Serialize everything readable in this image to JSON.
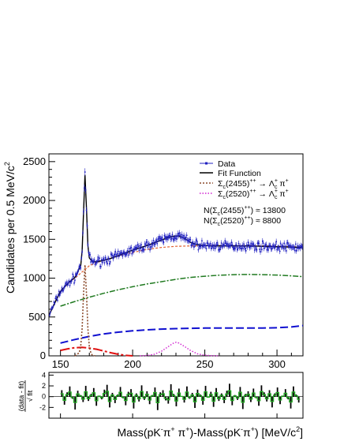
{
  "chart_data": [
    {
      "type": "line",
      "xlim": [
        142,
        318
      ],
      "ylim": [
        0,
        2600
      ],
      "xticks": [
        150,
        200,
        250,
        300
      ],
      "yticks": [
        0,
        500,
        1000,
        1500,
        2000,
        2500
      ],
      "xlabel_parts": {
        "a": "Mass(pK",
        "a_sup": "-",
        "b": "π",
        "b_sup": "+",
        "c": " π",
        "c_sup": "+",
        "d": ")-Mass(pK",
        "d_sup": "-",
        "e": "π",
        "e_sup": "+",
        "f": ") [MeV/c",
        "f_sup": "2",
        "g": "]"
      },
      "ylabel_parts": {
        "a": "Candidates per 0.5 MeV/c",
        "a_sup": "2"
      },
      "grid": false,
      "legend_position": "top-right",
      "legend": [
        {
          "key": "data",
          "label": "Data",
          "style": "points",
          "color": "#2020c0"
        },
        {
          "key": "fit",
          "label": "Fit Function",
          "style": "solid",
          "color": "#000000"
        },
        {
          "key": "sc2455",
          "label_parts": {
            "a": "Σ",
            "a_sub": "c",
            "b": "(2455)",
            "b_sup": "++",
            "c": " → Λ",
            "c_sup": "+",
            "c_sub": "c",
            "d": " π",
            "d_sup": "+"
          },
          "style": "dotted",
          "color": "#8b4a2b"
        },
        {
          "key": "sc2520",
          "label_parts": {
            "a": "Σ",
            "a_sub": "c",
            "b": "(2520)",
            "b_sup": "++",
            "c": " → Λ",
            "c_sup": "+",
            "c_sub": "c",
            "d": " π",
            "d_sup": "+"
          },
          "style": "dotted",
          "color": "#d020d0"
        }
      ],
      "annotations": [
        {
          "parts": {
            "a": "N(Σ",
            "a_sub": "c",
            "b": "(2455)",
            "b_sup": "++",
            "c": ") ≈ 13800"
          }
        },
        {
          "parts": {
            "a": "N(Σ",
            "a_sub": "c",
            "b": "(2520)",
            "b_sup": "++",
            "c": ") ≈ 8800"
          }
        }
      ],
      "series": [
        {
          "key": "fit",
          "color": "#000000",
          "x": [
            142,
            145,
            150,
            155,
            160,
            164,
            165,
            166,
            167,
            168,
            169,
            170,
            172,
            175,
            180,
            185,
            190,
            195,
            200,
            205,
            210,
            215,
            220,
            225,
            228,
            231,
            234,
            237,
            240,
            245,
            250,
            255,
            260,
            270,
            280,
            290,
            300,
            310,
            318
          ],
          "y": [
            520,
            640,
            830,
            930,
            1010,
            1160,
            1350,
            1850,
            2330,
            1900,
            1420,
            1260,
            1215,
            1210,
            1230,
            1255,
            1290,
            1325,
            1360,
            1390,
            1420,
            1455,
            1490,
            1525,
            1540,
            1545,
            1530,
            1500,
            1460,
            1430,
            1420,
            1415,
            1415,
            1415,
            1415,
            1410,
            1405,
            1400,
            1395
          ]
        },
        {
          "key": "background_total",
          "color": "#e06030",
          "x": [
            142,
            145,
            150,
            155,
            160,
            165,
            170,
            175,
            180,
            190,
            200,
            210,
            220,
            230,
            240,
            250,
            260,
            270,
            280,
            290,
            300,
            310,
            318
          ],
          "y": [
            520,
            640,
            830,
            930,
            1000,
            1080,
            1160,
            1200,
            1230,
            1285,
            1330,
            1370,
            1395,
            1410,
            1415,
            1418,
            1420,
            1420,
            1418,
            1415,
            1410,
            1405,
            1400
          ]
        },
        {
          "key": "sc2455",
          "color": "#8b4a2b",
          "x": [
            160,
            163,
            164,
            165,
            166,
            167,
            168,
            169,
            170,
            171,
            172,
            174
          ],
          "y": [
            0,
            40,
            120,
            350,
            800,
            1170,
            800,
            350,
            120,
            40,
            10,
            0
          ]
        },
        {
          "key": "sc2520",
          "color": "#d020d0",
          "x": [
            205,
            210,
            215,
            220,
            224,
            228,
            230,
            232,
            236,
            240,
            245,
            250,
            255,
            260
          ],
          "y": [
            0,
            5,
            20,
            60,
            110,
            160,
            175,
            165,
            120,
            70,
            25,
            8,
            2,
            0
          ]
        },
        {
          "key": "bkg_green",
          "color": "#207a20",
          "x": [
            150,
            160,
            170,
            180,
            190,
            200,
            210,
            220,
            230,
            240,
            250,
            260,
            270,
            280,
            290,
            300,
            310,
            318
          ],
          "y": [
            640,
            700,
            755,
            805,
            850,
            890,
            925,
            955,
            985,
            1010,
            1025,
            1038,
            1045,
            1048,
            1045,
            1040,
            1030,
            1020
          ]
        },
        {
          "key": "bkg_blue",
          "color": "#1010d0",
          "x": [
            150,
            160,
            170,
            180,
            190,
            200,
            210,
            220,
            230,
            240,
            250,
            260,
            270,
            280,
            290,
            300,
            310,
            318
          ],
          "y": [
            165,
            210,
            250,
            282,
            305,
            322,
            335,
            344,
            350,
            354,
            357,
            358,
            358,
            358,
            359,
            362,
            372,
            390
          ]
        },
        {
          "key": "bkg_red",
          "color": "#e01010",
          "x": [
            150,
            155,
            160,
            165,
            170,
            175,
            180,
            185,
            190,
            195,
            200
          ],
          "y": [
            70,
            90,
            105,
            110,
            100,
            85,
            62,
            40,
            20,
            6,
            0
          ]
        }
      ],
      "data_points": {
        "seed": 7,
        "noise": 35,
        "color": "#2020c0"
      }
    },
    {
      "type": "bar",
      "ylabel_parts": {
        "a": "(data - fit)",
        "b": "√ fit"
      },
      "ylim": [
        -4,
        4.5
      ],
      "yticks": [
        -2,
        0,
        2,
        4
      ],
      "xlim": [
        142,
        318
      ],
      "bar_color": "#000000",
      "hist_color": "#22aa22",
      "pulls": [
        1.2,
        -1.5,
        0.8,
        1.9,
        -0.4,
        -2.4,
        1.1,
        0.3,
        -1.0,
        2.0,
        -0.8,
        0.5,
        1.6,
        -1.7,
        0.2,
        -0.5,
        1.3,
        2.2,
        -2.0,
        0.7,
        -1.2,
        0.4,
        1.8,
        -0.3,
        -1.6,
        0.9,
        1.4,
        -2.2,
        0.6,
        -0.9,
        2.1,
        -0.6,
        1.0,
        -1.4,
        0.3,
        1.7,
        -2.5,
        0.8,
        1.2,
        -0.7,
        -1.3,
        2.3,
        0.5,
        -1.8,
        1.5,
        0.1,
        -1.1,
        1.9,
        -0.4,
        0.7,
        -2.1,
        1.3,
        0.4,
        -1.5,
        2.0,
        -0.2,
        0.9,
        -1.9,
        1.6,
        -0.8,
        0.6,
        -1.2,
        1.1,
        2.4,
        -1.6,
        0.3,
        -0.6,
        1.8,
        -2.3,
        0.5,
        1.0,
        -1.0,
        1.5,
        -0.3,
        -1.7,
        2.1,
        0.8,
        -0.9,
        1.2,
        -2.0,
        0.6,
        1.7,
        -1.4,
        0.2,
        1.4,
        -0.5,
        -2.2,
        1.9,
        0.4,
        -1.1
      ]
    }
  ]
}
